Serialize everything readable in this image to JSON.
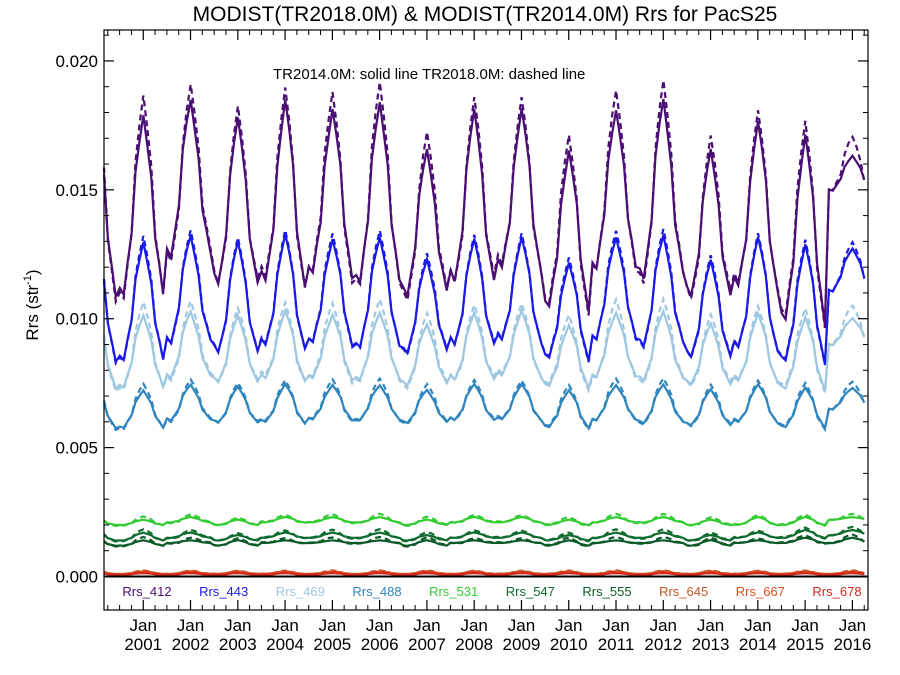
{
  "chart_data": {
    "type": "line",
    "title": "MODIST(TR2018.0M) & MODIST(TR2014.0M)  Rrs for PacS25",
    "ylabel": "Rrs (str",
    "ylabel_sup": "-1",
    "ylabel_close": ")",
    "annotation": "TR2014.0M: solid line   TR2018.0M: dashed line",
    "xlim": [
      2000.17,
      2016.33
    ],
    "ylim": [
      -0.0013,
      0.0212
    ],
    "yticks": [
      0.0,
      0.005,
      0.01,
      0.015,
      0.02
    ],
    "ytick_labels": [
      "0.000",
      "0.005",
      "0.010",
      "0.015",
      "0.020"
    ],
    "xticks": [
      2001,
      2002,
      2003,
      2004,
      2005,
      2006,
      2007,
      2008,
      2009,
      2010,
      2011,
      2012,
      2013,
      2014,
      2015,
      2016
    ],
    "xtick_month": "Jan",
    "xtick_years": [
      "2001",
      "2002",
      "2003",
      "2004",
      "2005",
      "2006",
      "2007",
      "2008",
      "2009",
      "2010",
      "2011",
      "2012",
      "2013",
      "2014",
      "2015",
      "2016"
    ],
    "grid": false,
    "legend_placement": "bottom",
    "line_styles": {
      "TR2014.0M": "solid",
      "TR2018.0M": "dashed"
    },
    "x_step": 0.08333,
    "series": [
      {
        "name": "Rrs_412",
        "color": "#4B0E73",
        "peaks": [
          0.0178,
          0.0183,
          0.0175,
          0.0182,
          0.018,
          0.0183,
          0.0164,
          0.0178,
          0.0179,
          0.0164,
          0.018,
          0.0183,
          0.0163,
          0.0174,
          0.017,
          0.0163
        ],
        "troughs": [
          0.0111,
          0.0126,
          0.0115,
          0.0115,
          0.0118,
          0.0116,
          0.0111,
          0.0116,
          0.012,
          0.0105,
          0.0121,
          0.0118,
          0.011,
          0.0113,
          0.01,
          0.015
        ],
        "dashed_offset": 0.0006
      },
      {
        "name": "Rrs_443",
        "color": "#1A1AE6",
        "peaks": [
          0.0129,
          0.0131,
          0.0128,
          0.0131,
          0.013,
          0.0131,
          0.0122,
          0.0129,
          0.013,
          0.0121,
          0.0131,
          0.0131,
          0.0121,
          0.013,
          0.0128,
          0.0127
        ],
        "troughs": [
          0.0085,
          0.0092,
          0.0088,
          0.009,
          0.0091,
          0.009,
          0.0088,
          0.0091,
          0.0092,
          0.0085,
          0.0093,
          0.0091,
          0.0086,
          0.0089,
          0.0084,
          0.0111
        ],
        "dashed_offset": 0.0002
      },
      {
        "name": "Rrs_469",
        "color": "#9EC8E2",
        "peaks": [
          0.0101,
          0.0102,
          0.01,
          0.0102,
          0.0101,
          0.0102,
          0.0097,
          0.0101,
          0.0102,
          0.0097,
          0.0102,
          0.0102,
          0.0097,
          0.0101,
          0.01,
          0.01
        ],
        "troughs": [
          0.0074,
          0.0078,
          0.0076,
          0.0077,
          0.0077,
          0.0077,
          0.0075,
          0.0077,
          0.0078,
          0.0074,
          0.0078,
          0.0077,
          0.0075,
          0.0076,
          0.0073,
          0.009
        ],
        "dashed_offset": 0.0004
      },
      {
        "name": "Rrs_488",
        "color": "#2F85BE",
        "peaks": [
          0.0072,
          0.0074,
          0.0073,
          0.0074,
          0.0074,
          0.0074,
          0.0072,
          0.0074,
          0.0074,
          0.0072,
          0.0074,
          0.0074,
          0.0072,
          0.0074,
          0.0073,
          0.0073
        ],
        "troughs": [
          0.0058,
          0.0061,
          0.006,
          0.006,
          0.0061,
          0.0061,
          0.006,
          0.0061,
          0.0061,
          0.0058,
          0.0061,
          0.006,
          0.0059,
          0.006,
          0.0058,
          0.0065
        ],
        "dashed_offset": 0.0002
      },
      {
        "name": "Rrs_531",
        "color": "#33CC33",
        "peaks": [
          0.0022,
          0.0023,
          0.0022,
          0.0023,
          0.0023,
          0.0023,
          0.0022,
          0.0023,
          0.0023,
          0.0022,
          0.0023,
          0.0023,
          0.0022,
          0.0023,
          0.0023,
          0.0023
        ],
        "troughs": [
          0.002,
          0.0021,
          0.002,
          0.0021,
          0.0021,
          0.0021,
          0.002,
          0.0021,
          0.0021,
          0.002,
          0.0021,
          0.0021,
          0.002,
          0.002,
          0.002,
          0.0022
        ],
        "dashed_offset": 0.0001
      },
      {
        "name": "Rrs_547",
        "color": "#0F6B2E",
        "peaks": [
          0.0017,
          0.0017,
          0.0016,
          0.0017,
          0.0017,
          0.0017,
          0.0016,
          0.0017,
          0.0017,
          0.0016,
          0.0017,
          0.0017,
          0.0016,
          0.0017,
          0.0018,
          0.0018
        ],
        "troughs": [
          0.0014,
          0.0015,
          0.0014,
          0.0015,
          0.0015,
          0.0015,
          0.0014,
          0.0015,
          0.0015,
          0.0014,
          0.0015,
          0.0015,
          0.0014,
          0.0015,
          0.0015,
          0.0016
        ],
        "dashed_offset": 0.0001
      },
      {
        "name": "Rrs_555",
        "color": "#0C5A28",
        "peaks": [
          0.0014,
          0.0014,
          0.0014,
          0.0014,
          0.0014,
          0.0014,
          0.0014,
          0.0014,
          0.0014,
          0.0014,
          0.0014,
          0.0014,
          0.0014,
          0.0014,
          0.0015,
          0.0015
        ],
        "troughs": [
          0.0012,
          0.0013,
          0.0012,
          0.0013,
          0.0013,
          0.0013,
          0.0012,
          0.0013,
          0.0013,
          0.0012,
          0.0013,
          0.0013,
          0.0012,
          0.0013,
          0.0013,
          0.0013
        ],
        "dashed_offset": 0.0001
      },
      {
        "name": "Rrs_645",
        "color": "#C4562B",
        "peaks": [
          0.0002,
          0.0002,
          0.0002,
          0.0002,
          0.0002,
          0.0002,
          0.0002,
          0.0002,
          0.0002,
          0.0002,
          0.0002,
          0.0002,
          0.0002,
          0.0002,
          0.0002,
          0.0002
        ],
        "troughs": [
          0.0001,
          0.0001,
          0.0001,
          0.0001,
          0.0001,
          0.0001,
          0.0001,
          0.0001,
          0.0001,
          0.0001,
          0.0001,
          0.0001,
          0.0001,
          0.0001,
          0.0001,
          0.0001
        ],
        "dashed_offset": 3e-05
      },
      {
        "name": "Rrs_667",
        "color": "#E0521A",
        "peaks": [
          0.00015,
          0.00015,
          0.00015,
          0.00015,
          0.00015,
          0.00015,
          0.00015,
          0.00015,
          0.00015,
          0.00015,
          0.00015,
          0.00015,
          0.00015,
          0.00015,
          0.00015,
          0.00015
        ],
        "troughs": [
          8e-05,
          8e-05,
          8e-05,
          8e-05,
          8e-05,
          8e-05,
          8e-05,
          8e-05,
          8e-05,
          8e-05,
          8e-05,
          8e-05,
          8e-05,
          8e-05,
          8e-05,
          8e-05
        ],
        "dashed_offset": 3e-05
      },
      {
        "name": "Rrs_678",
        "color": "#D42A1E",
        "peaks": [
          0.00013,
          0.00013,
          0.00013,
          0.00013,
          0.00013,
          0.00013,
          0.00013,
          0.00013,
          0.00013,
          0.00013,
          0.00013,
          0.00013,
          0.00013,
          0.00013,
          0.00013,
          0.00013
        ],
        "troughs": [
          7e-05,
          7e-05,
          7e-05,
          7e-05,
          7e-05,
          7e-05,
          7e-05,
          7e-05,
          7e-05,
          7e-05,
          7e-05,
          7e-05,
          7e-05,
          7e-05,
          7e-05,
          7e-05
        ],
        "dashed_offset": 3e-05
      }
    ]
  }
}
